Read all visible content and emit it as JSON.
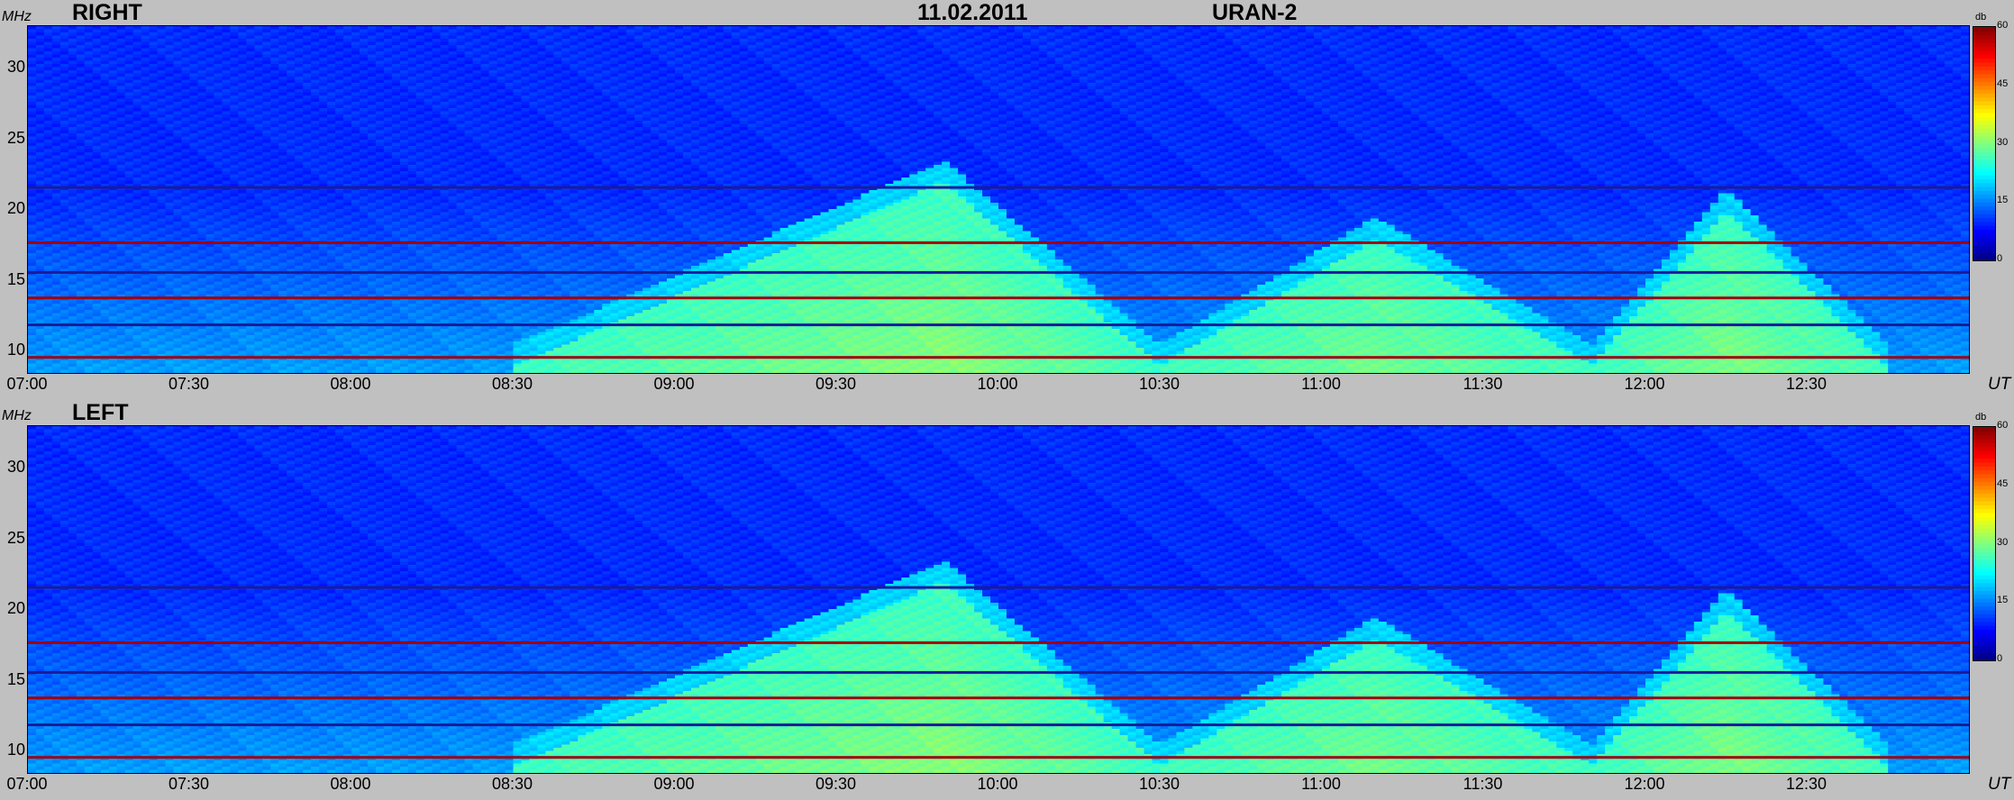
{
  "header": {
    "date": "11.02.2011",
    "instrument": "URAN-2"
  },
  "axis": {
    "y_unit": "MHz",
    "x_unit": "UT",
    "colorbar_unit": "db"
  },
  "chart_data": [
    {
      "type": "heatmap",
      "title": "RIGHT",
      "x_ticks": [
        "07:00",
        "07:30",
        "08:00",
        "08:30",
        "09:00",
        "09:30",
        "10:00",
        "10:30",
        "11:00",
        "11:30",
        "12:00",
        "12:30"
      ],
      "y_ticks": [
        10,
        15,
        20,
        25,
        30
      ],
      "xlim": [
        "07:00",
        "13:00"
      ],
      "ylim": [
        8.5,
        33
      ],
      "colorbar": {
        "ticks": [
          0,
          15,
          30,
          45,
          60
        ],
        "range": [
          0,
          60
        ],
        "colormap": "jet"
      },
      "bursts": [
        {
          "start": "08:30",
          "peak": "09:50",
          "end": "10:30",
          "f_top_mhz": 22
        },
        {
          "start": "10:30",
          "peak": "11:10",
          "end": "11:50",
          "f_top_mhz": 18
        },
        {
          "start": "11:50",
          "peak": "12:15",
          "end": "12:45",
          "f_top_mhz": 20
        }
      ],
      "interference_lines_mhz": [
        9.6,
        11.9,
        13.8,
        15.6,
        17.7,
        21.6
      ]
    },
    {
      "type": "heatmap",
      "title": "LEFT",
      "x_ticks": [
        "07:00",
        "07:30",
        "08:00",
        "08:30",
        "09:00",
        "09:30",
        "10:00",
        "10:30",
        "11:00",
        "11:30",
        "12:00",
        "12:30"
      ],
      "y_ticks": [
        10,
        15,
        20,
        25,
        30
      ],
      "xlim": [
        "07:00",
        "13:00"
      ],
      "ylim": [
        8.5,
        33
      ],
      "colorbar": {
        "ticks": [
          0,
          15,
          30,
          45,
          60
        ],
        "range": [
          0,
          60
        ],
        "colormap": "jet"
      },
      "bursts": [
        {
          "start": "08:30",
          "peak": "09:50",
          "end": "10:30",
          "f_top_mhz": 22
        },
        {
          "start": "10:30",
          "peak": "11:10",
          "end": "11:50",
          "f_top_mhz": 18
        },
        {
          "start": "11:50",
          "peak": "12:15",
          "end": "12:45",
          "f_top_mhz": 20
        }
      ],
      "interference_lines_mhz": [
        9.6,
        11.9,
        13.8,
        15.6,
        17.7,
        21.6
      ]
    }
  ]
}
